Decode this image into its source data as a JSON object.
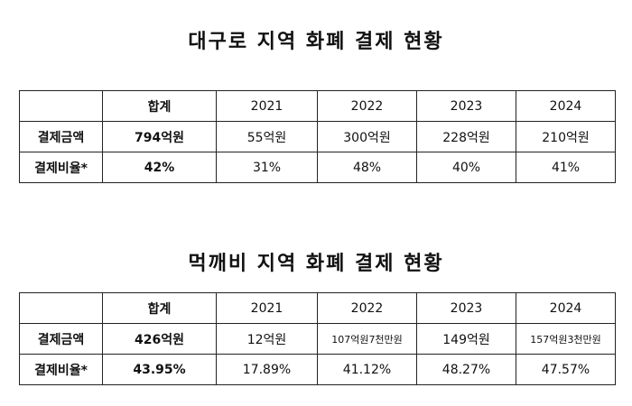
{
  "table1": {
    "title": "대구로 지역 화폐 결제 현황",
    "header": [
      "",
      "합계",
      "2021",
      "2022",
      "2023",
      "2024"
    ],
    "rows": [
      {
        "label": "결제금액",
        "cells": [
          "794억원",
          "55억원",
          "300억원",
          "228억원",
          "210억원"
        ]
      },
      {
        "label": "결제비율*",
        "cells": [
          "42%",
          "31%",
          "48%",
          "40%",
          "41%"
        ]
      }
    ]
  },
  "table2": {
    "title": "먹깨비 지역 화폐 결제 현황",
    "header": [
      "",
      "합계",
      "2021",
      "2022",
      "2023",
      "2024"
    ],
    "rows": [
      {
        "label": "결제금액",
        "cells": [
          "426억원",
          "12억원",
          "107억원7천만원",
          "149억원",
          "157억원3천만원"
        ]
      },
      {
        "label": "결제비율*",
        "cells": [
          "43.95%",
          "17.89%",
          "41.12%",
          "48.27%",
          "47.57%"
        ]
      }
    ]
  }
}
